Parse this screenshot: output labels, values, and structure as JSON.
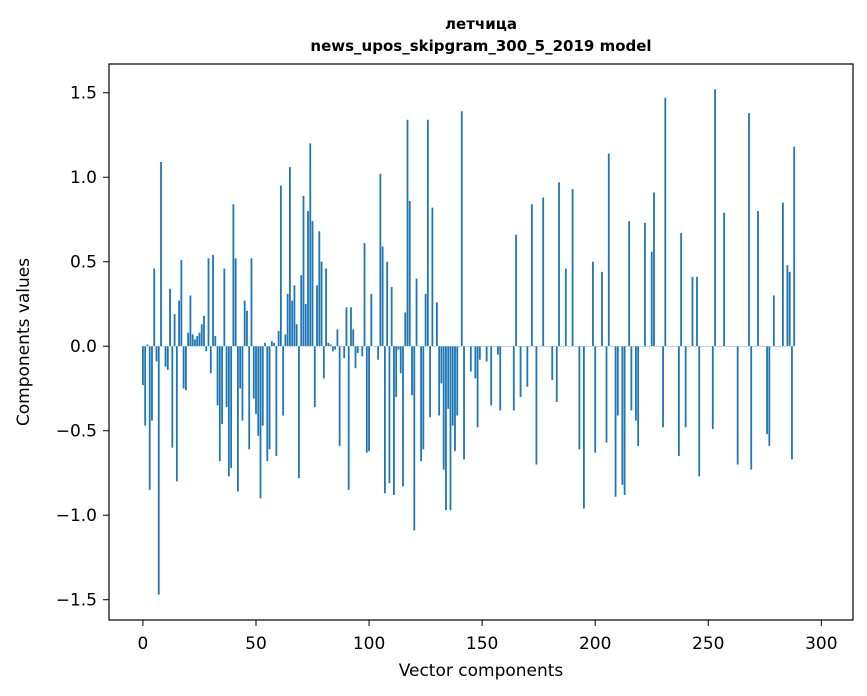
{
  "chart_data": {
    "type": "bar",
    "title": "летчица",
    "subtitle": "news_upos_skipgram_300_5_2019 model",
    "xlabel": "Vector components",
    "ylabel": "Components values",
    "xlim": [
      -15,
      314
    ],
    "ylim": [
      -1.62,
      1.67
    ],
    "xticks": [
      0,
      50,
      100,
      150,
      200,
      250,
      300
    ],
    "yticks": [
      -1.5,
      -1.0,
      -0.5,
      0.0,
      0.5,
      1.0,
      1.5
    ],
    "xtick_labels": [
      "0",
      "50",
      "100",
      "150",
      "200",
      "250",
      "300"
    ],
    "ytick_labels": [
      "−1.5",
      "−1.0",
      "−0.5",
      "0.0",
      "0.5",
      "1.0",
      "1.5"
    ],
    "grid": false,
    "bar_color": "#1f77b4",
    "x_start": 0,
    "values": [
      -0.23,
      -0.47,
      0.01,
      -0.85,
      -0.44,
      0.46,
      -0.09,
      -1.47,
      1.09,
      0.0,
      -0.12,
      -0.14,
      0.34,
      -0.6,
      0.19,
      -0.8,
      0.27,
      0.51,
      -0.25,
      -0.26,
      0.08,
      0.3,
      0.07,
      0.04,
      0.06,
      0.08,
      0.13,
      0.18,
      -0.03,
      0.52,
      -0.16,
      0.54,
      0.06,
      -0.35,
      -0.68,
      -0.46,
      0.46,
      -0.36,
      -0.77,
      -0.72,
      0.84,
      0.52,
      -0.86,
      -0.25,
      -0.44,
      0.27,
      0.21,
      -0.61,
      0.52,
      -0.31,
      -0.4,
      -0.53,
      -0.9,
      -0.47,
      0.02,
      -0.68,
      -0.61,
      0.03,
      0.02,
      -0.65,
      0.09,
      0.95,
      -0.41,
      0.07,
      0.31,
      1.06,
      0.27,
      0.36,
      0.13,
      -0.78,
      0.42,
      0.89,
      0.25,
      0.8,
      1.2,
      0.74,
      -0.36,
      0.36,
      0.68,
      0.5,
      -0.19,
      0.46,
      0.02,
      0.01,
      -0.03,
      -0.02,
      0.1,
      -0.59,
      0.0,
      -0.07,
      0.23,
      -0.85,
      0.23,
      0.1,
      -0.13,
      -0.04,
      0.0,
      -0.06,
      0.61,
      -0.63,
      -0.62,
      0.31,
      0.0,
      0.0,
      -0.08,
      1.02,
      0.59,
      -0.87,
      0.5,
      -0.81,
      0.35,
      -0.88,
      -0.3,
      -0.02,
      -0.16,
      -0.83,
      0.2,
      1.34,
      0.86,
      -0.29,
      -1.09,
      0.4,
      0.0,
      -0.68,
      -0.61,
      0.31,
      1.34,
      -0.42,
      0.82,
      0.0,
      0.26,
      -0.41,
      -0.22,
      -0.73,
      -0.97,
      -0.37,
      -0.97,
      -0.47,
      -0.62,
      -0.41,
      0.0,
      1.39,
      -0.67,
      0.0,
      0.0,
      -0.15,
      0.0,
      -0.19,
      -0.48,
      -0.08,
      0.0,
      0.0,
      -0.09,
      0.0,
      -0.35,
      0.0,
      0.0,
      -0.05,
      -0.38,
      0.0,
      0.0,
      0.0,
      0.0,
      0.0,
      -0.38,
      0.66,
      0.0,
      -0.3,
      0.0,
      0.0,
      -0.24,
      0.0,
      0.84,
      0.0,
      -0.7,
      0.0,
      0.0,
      0.88,
      0.0,
      0.0,
      0.0,
      -0.2,
      0.0,
      -0.33,
      0.97,
      0.0,
      0.0,
      0.46,
      0.0,
      0.0,
      0.93,
      0.0,
      0.0,
      -0.61,
      0.0,
      -0.96,
      0.0,
      0.0,
      0.0,
      0.5,
      -0.63,
      0.0,
      0.0,
      0.44,
      0.0,
      -0.57,
      1.14,
      0.0,
      0.0,
      -0.89,
      -0.41,
      0.0,
      -0.82,
      -0.88,
      0.0,
      0.74,
      -0.38,
      0.0,
      -0.44,
      -0.59,
      0.0,
      0.0,
      0.73,
      0.0,
      0.0,
      0.56,
      0.91,
      0.0,
      0.0,
      0.0,
      -0.48,
      1.47,
      0.0,
      0.0,
      0.0,
      0.0,
      0.0,
      -0.65,
      0.67,
      0.0,
      -0.48,
      0.0,
      0.0,
      0.41,
      0.0,
      0.41,
      -0.77,
      0.0,
      0.0,
      0.0,
      0.0,
      0.0,
      -0.49,
      1.52,
      0.0,
      0.0,
      0.0,
      0.79,
      0.0,
      0.0,
      0.0,
      0.0,
      0.0,
      -0.7,
      0.0,
      0.0,
      0.0,
      0.0,
      1.38,
      -0.73,
      0.0,
      0.0,
      0.8,
      0.0,
      0.0,
      0.0,
      -0.52,
      -0.59,
      0.0,
      0.3,
      0.0,
      0.0,
      0.0,
      0.85,
      0.0,
      0.48,
      0.44,
      -0.67,
      1.18
    ]
  }
}
